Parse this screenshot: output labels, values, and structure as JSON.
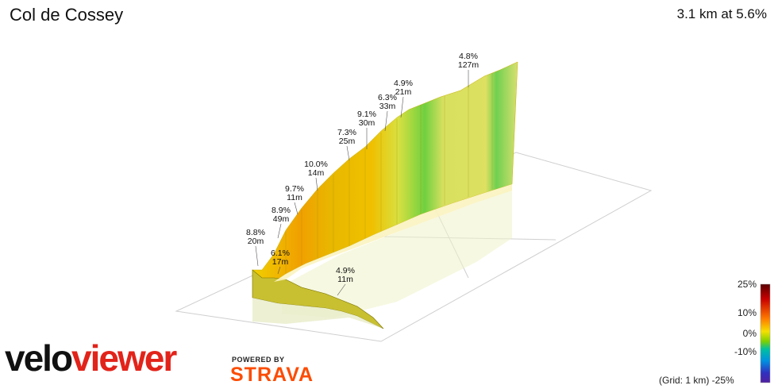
{
  "header": {
    "title": "Col de Cossey",
    "summary": "3.1 km at 5.6%"
  },
  "brand": {
    "logo_part1": "velo",
    "logo_part2": "viewer",
    "powered_by": "POWERED BY",
    "strava": "STRAVA"
  },
  "scale": {
    "ticks": [
      "25%",
      "10%",
      "0%",
      "-10%"
    ],
    "bottom_label": "(Grid: 1 km) -25%"
  },
  "chart_data": {
    "type": "area",
    "annotations": [
      {
        "grade": "4.9%",
        "length": "11m"
      },
      {
        "grade": "6.1%",
        "length": "17m"
      },
      {
        "grade": "8.8%",
        "length": "20m"
      },
      {
        "grade": "8.9%",
        "length": "49m"
      },
      {
        "grade": "9.7%",
        "length": "11m"
      },
      {
        "grade": "10.0%",
        "length": "14m"
      },
      {
        "grade": "7.3%",
        "length": "25m"
      },
      {
        "grade": "9.1%",
        "length": "30m"
      },
      {
        "grade": "6.3%",
        "length": "33m"
      },
      {
        "grade": "4.9%",
        "length": "21m"
      },
      {
        "grade": "4.8%",
        "length": "127m"
      }
    ],
    "distance_km": 3.1,
    "avg_grade_pct": 5.6,
    "color_scale_range_pct": [
      -25,
      25
    ],
    "grid_km": 1
  }
}
